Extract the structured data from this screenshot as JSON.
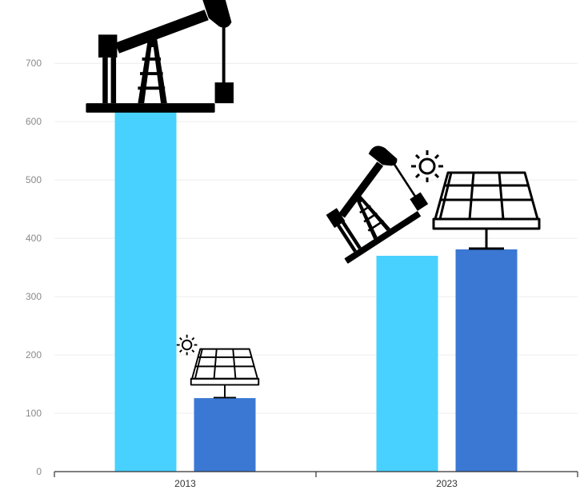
{
  "chart_data": {
    "type": "bar",
    "categories": [
      "2013",
      "2023"
    ],
    "series": [
      {
        "values": [
          625,
          370
        ],
        "color": "#48D1FF",
        "icon": "oil-pump-icon"
      },
      {
        "values": [
          126,
          381
        ],
        "color": "#3B78D4",
        "icon": "solar-panel-icon"
      }
    ],
    "yticks": [
      0,
      100,
      200,
      300,
      400,
      500,
      600,
      700
    ],
    "ylim": [
      0,
      720
    ],
    "grid": true,
    "legend": "none"
  }
}
